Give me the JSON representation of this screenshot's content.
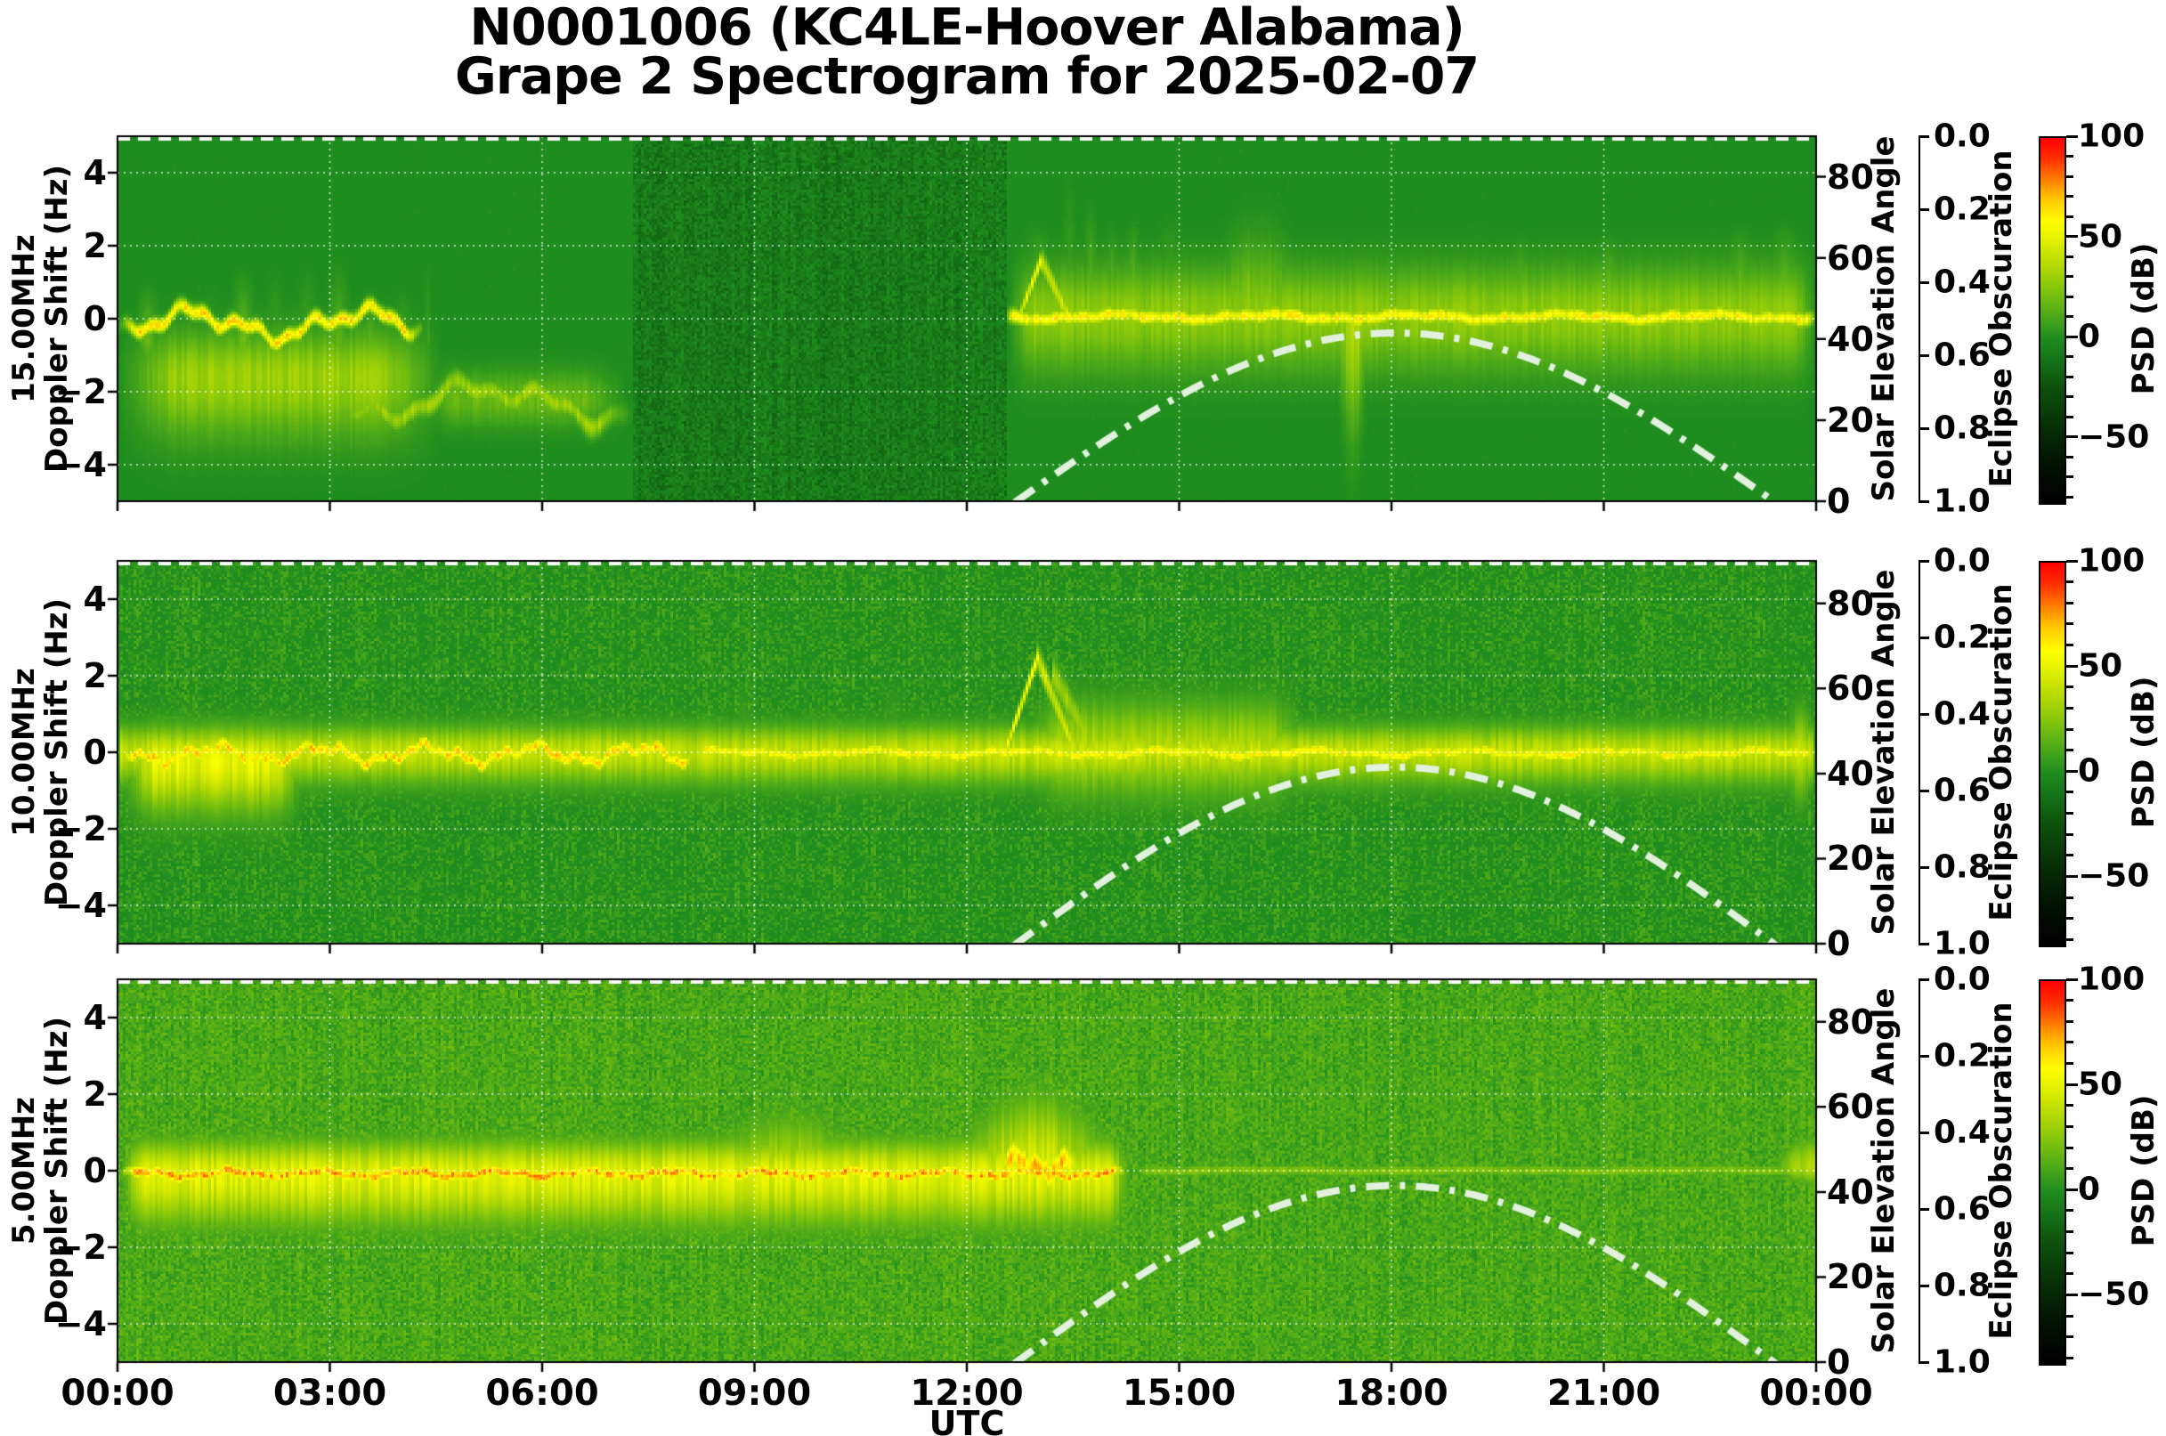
{
  "title": {
    "line1": "N0001006 (KC4LE-Hoover Alabama)",
    "line2": "Grape 2 Spectrogram for 2025-02-07"
  },
  "axes": {
    "xlabel": "UTC",
    "x_tick_labels": [
      "00:00",
      "03:00",
      "06:00",
      "09:00",
      "12:00",
      "15:00",
      "18:00",
      "21:00",
      "00:00"
    ],
    "x_tick_hours": [
      0,
      3,
      6,
      9,
      12,
      15,
      18,
      21,
      24
    ],
    "x_grid_hours": [
      3,
      6,
      9,
      12,
      15,
      18,
      21
    ],
    "doppler_ticks": [
      4,
      2,
      0,
      -2,
      -4
    ],
    "doppler_lim": [
      -5,
      5
    ],
    "solar": {
      "label": "Solar Elevation Angle",
      "ticks": [
        0,
        20,
        40,
        60,
        80
      ],
      "lim": [
        0,
        90
      ]
    },
    "eclipse": {
      "label": "Eclipse Obscuration",
      "ticks": [
        "0.0",
        "0.2",
        "0.4",
        "0.6",
        "0.8",
        "1.0"
      ],
      "inverted": true
    },
    "psd": {
      "label": "PSD (dB)",
      "ticks": [
        100,
        50,
        0,
        -50
      ],
      "lim": [
        -82,
        100
      ],
      "minor_step": 10
    }
  },
  "solar_curve": {
    "sunrise_utc": 12.7,
    "solar_noon_utc": 18.05,
    "sunset_utc": 23.4,
    "peak_elevation_deg": 41.5,
    "style": "dash-dot",
    "color": "#e2f0de"
  },
  "eclipse_curve": {
    "value": 0.0,
    "style": "dashed",
    "color": "#fbfbfb"
  },
  "colormap": [
    [
      -82,
      0,
      0,
      0
    ],
    [
      -62,
      3,
      20,
      3
    ],
    [
      -45,
      7,
      45,
      7
    ],
    [
      -25,
      13,
      80,
      13
    ],
    [
      -8,
      24,
      122,
      24
    ],
    [
      0,
      30,
      140,
      30
    ],
    [
      10,
      70,
      165,
      26
    ],
    [
      22,
      120,
      192,
      15
    ],
    [
      35,
      175,
      215,
      5
    ],
    [
      48,
      222,
      238,
      0
    ],
    [
      58,
      255,
      255,
      0
    ],
    [
      70,
      255,
      196,
      0
    ],
    [
      80,
      255,
      120,
      0
    ],
    [
      90,
      255,
      45,
      0
    ],
    [
      100,
      255,
      0,
      0
    ]
  ],
  "chart_data": [
    {
      "type": "heatmap",
      "frequency": "15.00MHz",
      "frequency_mhz": 15.0,
      "ylabel_line1": "15.00MHz",
      "ylabel_line2": "Doppler Shift (Hz)",
      "xlim_hours": [
        0,
        24
      ],
      "ylim_hz": [
        -5,
        5
      ],
      "seed": 11,
      "background_psd_db": -8,
      "noise_db": 7,
      "column_noise_db": 3,
      "features": [
        {
          "type": "trace",
          "t0": 0,
          "t1": 4.35,
          "c": -0.15,
          "w": 0.13,
          "amp": 62,
          "wanderAmp": 0.55,
          "wanderFreq": 2.6,
          "fade": 0.3
        },
        {
          "type": "band",
          "t0": 0,
          "t1": 4.6,
          "c": -1.6,
          "sigUp": 0.8,
          "sigDn": 1.1,
          "amp": 30,
          "fade": 0.8
        },
        {
          "type": "streaks",
          "t0": 0.2,
          "t1": 4.4,
          "period": 0.45,
          "c": -0.6,
          "up": 2.6,
          "dn": 2.2,
          "amp": 24
        },
        {
          "type": "trace",
          "t0": 3.0,
          "t1": 7.3,
          "c": -2.3,
          "w": 0.2,
          "amp": 30,
          "wanderAmp": 0.7,
          "wanderFreq": 1.8,
          "fade": 0.5
        },
        {
          "type": "band",
          "t0": 4.2,
          "t1": 7.2,
          "c": -2.2,
          "sigUp": 0.5,
          "sigDn": 0.5,
          "amp": 18,
          "fade": 0.6
        },
        {
          "type": "trace",
          "t0": 12.55,
          "t1": 24,
          "c": 0.05,
          "w": 0.14,
          "amp": 58,
          "wanderAmp": 0.1,
          "wanderFreq": 3,
          "fade": 0.1
        },
        {
          "type": "ramp",
          "t0": 12.75,
          "t1": 13.05,
          "c0": 0.1,
          "slope": 5.0,
          "w": 0.15,
          "amp": 48
        },
        {
          "type": "ramp",
          "t0": 13.05,
          "t1": 13.45,
          "c0": 1.6,
          "slope": -4.0,
          "w": 0.22,
          "amp": 42
        },
        {
          "type": "band",
          "t0": 12.6,
          "t1": 24,
          "c": 0.1,
          "sigUp": 0.85,
          "sigDn": 1.0,
          "amp": 27,
          "fade": 0.3
        },
        {
          "type": "streaks",
          "t0": 12.7,
          "t1": 24,
          "period": 0.62,
          "c": 0.1,
          "up": 3.1,
          "dn": 2.3,
          "amp": 34
        },
        {
          "type": "streaks",
          "t0": 13.3,
          "t1": 14.4,
          "period": 0.3,
          "c": 0.3,
          "up": 4.4,
          "dn": 1.5,
          "amp": 34
        },
        {
          "type": "spike",
          "tc": 17.45,
          "hw": 0.14,
          "c": 0,
          "up": 0.4,
          "dn": 3.8,
          "amp": 38
        },
        {
          "type": "spike",
          "tc": 16.1,
          "hw": 0.5,
          "c": 0.2,
          "up": 2.4,
          "dn": 1.8,
          "amp": 26
        }
      ],
      "summary": "Nighttime carrier trace wandering near 0 to -1 Hz from 00:00-04:30 with diffuse spread down to -3 Hz, faint wisps near -2.5 Hz until ~07:00, near-quiet 07:00-12:30, then strong daytime activity from ~12:45 to 24:00: bright carrier at 0 Hz, quasi-periodic plumes up to +4 Hz and a deep excursion to about -3.8 Hz near 17:30."
    },
    {
      "type": "heatmap",
      "frequency": "10.00MHz",
      "frequency_mhz": 10.0,
      "ylabel_line1": "10.00MHz",
      "ylabel_line2": "Doppler Shift (Hz)",
      "xlim_hours": [
        0,
        24
      ],
      "ylim_hz": [
        -5,
        5
      ],
      "seed": 22,
      "background_psd_db": 2,
      "noise_db": 8,
      "column_noise_db": 3,
      "features": [
        {
          "type": "band",
          "t0": 0,
          "t1": 24,
          "c": 0,
          "sigUp": 0.45,
          "sigDn": 0.55,
          "amp": 40,
          "fade": 0.05
        },
        {
          "type": "trace",
          "t0": 0,
          "t1": 8.2,
          "c": -0.05,
          "w": 0.13,
          "amp": 64,
          "wanderAmp": 0.32,
          "wanderFreq": 4.2,
          "fade": 0.2
        },
        {
          "type": "trace",
          "t0": 8.2,
          "t1": 24,
          "c": -0.02,
          "w": 0.12,
          "amp": 56,
          "wanderAmp": 0.1,
          "wanderFreq": 3,
          "fade": 0.1
        },
        {
          "type": "band",
          "t0": 0,
          "t1": 2.7,
          "c": -0.2,
          "sigUp": 0.55,
          "sigDn": 0.9,
          "amp": 50,
          "fade": 0.5
        },
        {
          "type": "streaks",
          "t0": 0.5,
          "t1": 3.2,
          "period": 0.5,
          "c": -0.3,
          "up": 0.8,
          "dn": 2.1,
          "amp": 30
        },
        {
          "type": "streaks",
          "t0": 3,
          "t1": 8.5,
          "period": 0.8,
          "c": -0.2,
          "up": 0.8,
          "dn": 1.6,
          "amp": 24
        },
        {
          "type": "streaks",
          "t0": 8.5,
          "t1": 12.3,
          "period": 0.7,
          "c": 0.2,
          "up": 2.6,
          "dn": 0.6,
          "amp": 14
        },
        {
          "type": "ramp",
          "t0": 12.55,
          "t1": 13.0,
          "c0": 0.05,
          "slope": 5.4,
          "w": 0.13,
          "amp": 54
        },
        {
          "type": "ramp",
          "t0": 13.0,
          "t1": 13.5,
          "c0": 2.45,
          "slope": -4.6,
          "w": 0.22,
          "amp": 44
        },
        {
          "type": "ramp",
          "t0": 13.2,
          "t1": 13.7,
          "c0": 2.1,
          "slope": -3.4,
          "w": 0.3,
          "amp": 30
        },
        {
          "type": "band",
          "t0": 12.8,
          "t1": 16.8,
          "c": 0.1,
          "sigUp": 0.8,
          "sigDn": 0.85,
          "amp": 34,
          "fade": 0.5
        },
        {
          "type": "streaks",
          "t0": 13.2,
          "t1": 17.5,
          "period": 0.55,
          "c": 0,
          "up": 1.7,
          "dn": 1.9,
          "amp": 27
        },
        {
          "type": "streaks",
          "t0": 17.5,
          "t1": 23.5,
          "period": 0.85,
          "c": 0,
          "up": 1.1,
          "dn": 1.9,
          "amp": 20
        },
        {
          "type": "band",
          "t0": 23.55,
          "t1": 24,
          "c": 0,
          "sigUp": 0.7,
          "sigDn": 0.8,
          "amp": 46,
          "fade": 0.25
        }
      ],
      "summary": "Continuous carrier band at 0 Hz all day; orange wavering core 00:00-08:00 with diffuse fingers down to -2.5 Hz; sharp sunrise enhancement near 13:00 rising to +2.5 Hz; broad disturbed band with +/-2 Hz streaks through the afternoon, narrowing in the evening and brightening again just before 24:00."
    },
    {
      "type": "heatmap",
      "frequency": "5.00MHz",
      "frequency_mhz": 5.0,
      "ylabel_line1": "5.00MHz",
      "ylabel_line2": "Doppler Shift (Hz)",
      "xlim_hours": [
        0,
        24
      ],
      "ylim_hz": [
        -5,
        5
      ],
      "seed": 33,
      "background_psd_db": 11,
      "noise_db": 7,
      "column_noise_db": 2.5,
      "features": [
        {
          "type": "band",
          "t0": 0,
          "t1": 14.35,
          "c": -0.1,
          "sigUp": 0.6,
          "sigDn": 0.9,
          "amp": 48,
          "fade": 0.35
        },
        {
          "type": "trace",
          "t0": 0,
          "t1": 14.3,
          "c": -0.08,
          "w": 0.11,
          "amp": 72,
          "wanderAmp": 0.12,
          "wanderFreq": 5,
          "fade": 0.25
        },
        {
          "type": "streaks",
          "t0": 0.3,
          "t1": 7.5,
          "period": 0.85,
          "c": 0,
          "up": 1.0,
          "dn": 1.5,
          "amp": 24
        },
        {
          "type": "spike",
          "tc": 9.45,
          "hw": 0.85,
          "c": 0,
          "up": 2.0,
          "dn": 0.6,
          "amp": 34
        },
        {
          "type": "spike",
          "tc": 12.95,
          "hw": 0.75,
          "c": 0,
          "up": 2.6,
          "dn": 0.7,
          "amp": 46
        },
        {
          "type": "trace",
          "t0": 12.3,
          "t1": 13.7,
          "c": 0.15,
          "w": 0.3,
          "amp": 66,
          "wanderAmp": 0.3,
          "wanderFreq": 7,
          "fade": 0.3
        },
        {
          "type": "trace",
          "t0": 14.35,
          "t1": 24,
          "c": 0,
          "w": 0.09,
          "amp": 25,
          "wanderAmp": 0.03,
          "wanderFreq": 2,
          "fade": 0.2
        },
        {
          "type": "spike",
          "tc": 23.9,
          "hw": 0.3,
          "c": 0.1,
          "up": 1.0,
          "dn": 0.6,
          "amp": 36
        }
      ],
      "summary": "Broad bright carrier band around 0 Hz with an orange-red core from 00:00 until ~14:15, with domes up to +2 Hz near 09:30 and +2.5 Hz near 13:00; after ~14:15 daytime absorption collapses the signal to a very faint thin 0 Hz line, with slight recovery at the right edge near 24:00."
    }
  ]
}
